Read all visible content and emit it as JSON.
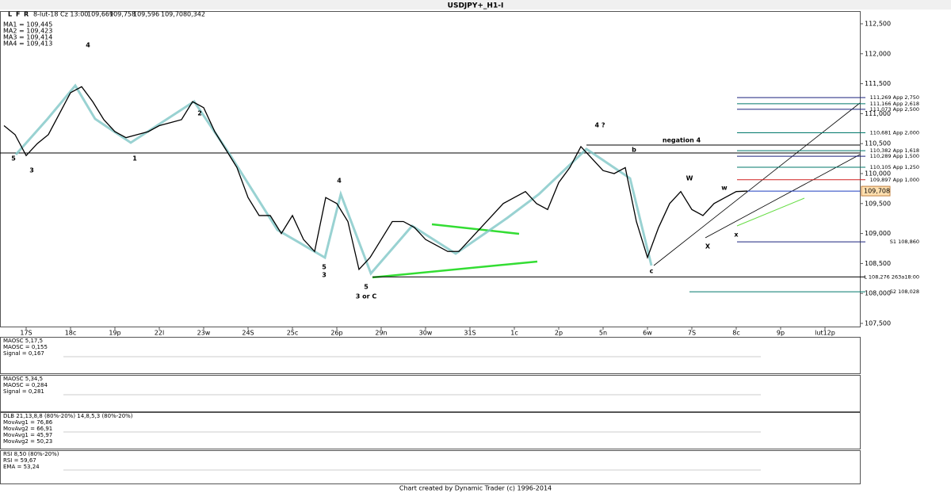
{
  "chart_data": {
    "type": "line",
    "title": "USDJPY+_H1-I",
    "toolbar": [
      "L",
      "F",
      "R"
    ],
    "quote": [
      "8-lut-18 Cz 13:00",
      "109,669",
      "109,758",
      "109,596",
      "109,708",
      "0,342"
    ],
    "moving_averages": [
      {
        "name": "MA1 = 109,445",
        "color": "#1f3fbf"
      },
      {
        "name": "MA2 = 109,423",
        "color": "#d02020"
      },
      {
        "name": "MA3 = 109,414",
        "color": "#2e7d32"
      },
      {
        "name": "MA4 = 109,413",
        "color": "#d020d0"
      }
    ],
    "categories": [
      null,
      null,
      "17S",
      null,
      null,
      null,
      "18c",
      null,
      null,
      null,
      "19p",
      null,
      null,
      null,
      "22l",
      null,
      null,
      null,
      "23w",
      null,
      null,
      null,
      "24S",
      null,
      null,
      null,
      "25c",
      null,
      null,
      null,
      "26p",
      null,
      null,
      null,
      "29n",
      null,
      null,
      null,
      "30w",
      null,
      null,
      null,
      "31S",
      null,
      null,
      null,
      "1c",
      null,
      null,
      null,
      "2p",
      null,
      null,
      null,
      "5n",
      null,
      null,
      null,
      "6w",
      null,
      null,
      null,
      "7S",
      null,
      null,
      null,
      "8c",
      null,
      null,
      null,
      "9p",
      null,
      null,
      null,
      "lut12p",
      null
    ],
    "series": [
      {
        "name": "USDJPY+",
        "color": "#000000",
        "values": [
          110.8,
          110.65,
          110.3,
          110.5,
          110.65,
          111.0,
          111.35,
          111.45,
          111.2,
          110.9,
          110.7,
          110.6,
          110.65,
          110.7,
          110.8,
          110.85,
          110.9,
          111.2,
          111.1,
          110.7,
          110.4,
          110.1,
          109.6,
          109.3,
          109.3,
          109.0,
          109.3,
          108.9,
          108.7,
          109.6,
          109.5,
          109.2,
          108.4,
          108.6,
          108.9,
          109.2,
          109.2,
          109.1,
          108.9,
          108.8,
          108.7,
          108.7,
          108.9,
          109.1,
          109.3,
          109.5,
          109.6,
          109.7,
          109.5,
          109.4,
          109.85,
          110.1,
          110.45,
          110.25,
          110.05,
          110.0,
          110.1,
          109.2,
          108.6,
          109.1,
          109.5,
          109.7,
          109.4,
          109.3,
          109.5,
          109.6,
          109.7,
          109.708,
          null,
          null,
          null,
          null,
          null,
          null,
          null,
          null
        ],
        "value_labels": [
          null,
          null,
          null,
          null,
          null,
          null,
          null,
          null,
          null,
          null,
          null,
          null,
          null,
          null,
          null,
          null,
          null,
          null,
          null,
          null,
          null,
          null,
          null,
          null,
          null,
          null,
          null,
          null,
          null,
          null,
          null,
          null,
          null,
          null,
          null,
          null,
          null,
          null,
          null,
          null,
          null,
          null,
          null,
          null,
          null,
          null,
          null,
          null,
          null,
          null,
          null,
          null,
          null,
          null,
          null,
          null,
          null,
          null,
          null,
          null,
          null,
          null,
          null,
          null,
          null,
          null,
          null,
          "109,708",
          null,
          null,
          null,
          null,
          null,
          null,
          null,
          null
        ]
      }
    ],
    "ylim": [
      107.5,
      112.5
    ],
    "yticks": [
      {
        "value": 107.5,
        "label": "107,500"
      },
      {
        "value": 108,
        "label": "108,000"
      },
      {
        "value": 108.5,
        "label": "108,500"
      },
      {
        "value": 109,
        "label": "109,000"
      },
      {
        "value": 109.5,
        "label": "109,500"
      },
      {
        "value": 110,
        "label": "110,000"
      },
      {
        "value": 110.5,
        "label": "110,500"
      },
      {
        "value": 111,
        "label": "111,000"
      },
      {
        "value": 111.5,
        "label": "111,500"
      },
      {
        "value": 112,
        "label": "112,000"
      },
      {
        "value": 112.5,
        "label": "112,500"
      }
    ],
    "levels": [
      {
        "value": 111.269,
        "label": "111,269 App 2,750",
        "color": "#1a237e"
      },
      {
        "value": 111.166,
        "label": "111,166 App 2,618",
        "color": "#00796b"
      },
      {
        "value": 111.073,
        "label": "111,073 App 2,500",
        "color": "#1a237e"
      },
      {
        "value": 110.681,
        "label": "110,681 App 2,000",
        "color": "#00796b"
      },
      {
        "value": 110.382,
        "label": "110,382 App 1,618",
        "color": "#00796b"
      },
      {
        "value": 110.289,
        "label": "110,289 App 1,500",
        "color": "#1a237e"
      },
      {
        "value": 110.105,
        "label": "110,105 App 1,250",
        "color": "#00796b"
      },
      {
        "value": 109.897,
        "label": "109,897 App 1,000",
        "color": "#d02020"
      },
      {
        "value": 108.86,
        "label": "S1 108,860",
        "color": "#1a237e"
      },
      {
        "value": 108.276,
        "label": "L 108,276 263a18:00",
        "color": "#000000"
      },
      {
        "value": 108.028,
        "label": "S2 108,028",
        "color": "#00796b"
      }
    ],
    "annotations": [
      {
        "text": "4",
        "color": "#2e7d32"
      },
      {
        "text": "2",
        "color": "#000000"
      },
      {
        "text": "3",
        "color": "#2e7d32"
      },
      {
        "text": "5",
        "color": "#000000"
      },
      {
        "text": "1",
        "color": "#000000"
      },
      {
        "text": "4",
        "color": "#000000"
      },
      {
        "text": "5",
        "color": "#1f3fbf"
      },
      {
        "text": "3",
        "color": "#000000"
      },
      {
        "text": "5",
        "color": "#000000"
      },
      {
        "text": "3 or C",
        "color": "#000000"
      },
      {
        "text": "4 ?",
        "color": "#000000"
      },
      {
        "text": "b",
        "color": "#000000"
      },
      {
        "text": "c",
        "color": "#000000"
      },
      {
        "text": "W",
        "color": "#c62828"
      },
      {
        "text": "X",
        "color": "#000000"
      },
      {
        "text": "x",
        "color": "#2e7d32"
      },
      {
        "text": "w",
        "color": "#2e7d32"
      },
      {
        "text": "negation 4",
        "color": "#000000"
      }
    ],
    "panels": [
      {
        "lines": [
          "MAOSC 5,17,5",
          "MAOSC = 0,155",
          "Signal = 0,167"
        ]
      },
      {
        "lines": [
          "MAOSC 5,34,5",
          "MAOSC = 0,284",
          "Signal = 0,281"
        ]
      },
      {
        "lines": [
          "DLB 21,13,8,8 (80%-20%) 14,8,5,3 (80%-20%)",
          "MovAvg1 = 76,86",
          "MovAvg2 = 66,91",
          "MovAvg1 = 45,97",
          "MovAvg2 = 50,23"
        ]
      },
      {
        "lines": [
          "RSI 8,50 (80%-20%)",
          "RSI = 59,67",
          "EMA = 53,24"
        ]
      }
    ],
    "footer": "Chart created by Dynamic Trader  (c) 1996-2014"
  }
}
